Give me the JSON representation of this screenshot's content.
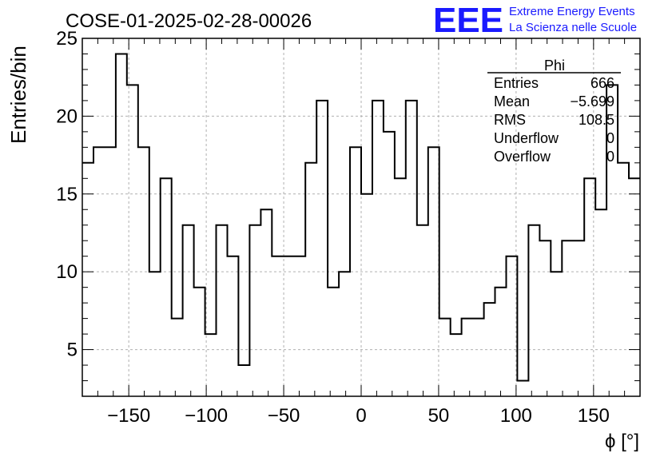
{
  "chart_data": {
    "type": "bar",
    "title": "COSE-01-2025-02-28-00026",
    "xlabel": "ϕ [°]",
    "ylabel": "Entries/bin",
    "xlim": [
      -180,
      180
    ],
    "ylim": [
      2,
      25
    ],
    "grid": true,
    "x_ticks": [
      -150,
      -100,
      -50,
      0,
      50,
      100,
      150
    ],
    "x_tick_labels": [
      "−150",
      "−100",
      "−50",
      "0",
      "50",
      "100",
      "150"
    ],
    "y_ticks": [
      5,
      10,
      15,
      20,
      25
    ],
    "y_tick_labels": [
      "5",
      "10",
      "15",
      "20",
      "25"
    ],
    "bin_edges_start": -180,
    "bin_width": 7.2,
    "values": [
      17,
      18,
      18,
      24,
      22,
      18,
      10,
      16,
      7,
      13,
      9,
      6,
      13,
      11,
      4,
      13,
      14,
      11,
      11,
      11,
      17,
      21,
      9,
      10,
      18,
      15,
      21,
      19,
      16,
      21,
      13,
      18,
      7,
      6,
      7,
      7,
      8,
      9,
      11,
      3,
      13,
      12,
      10,
      12,
      12,
      16,
      14,
      22,
      17,
      16
    ]
  },
  "stats_box": {
    "title": "Phi",
    "rows": [
      {
        "label": "Entries",
        "value": "666"
      },
      {
        "label": "Mean",
        "value": "−5.699"
      },
      {
        "label": "RMS",
        "value": "108.5"
      },
      {
        "label": "Underflow",
        "value": "0"
      },
      {
        "label": "Overflow",
        "value": "0"
      }
    ]
  },
  "logo": {
    "mark": "EEE",
    "line1": "Extreme Energy Events",
    "line2": "La Scienza nelle Scuole",
    "color": "#1a1aff"
  }
}
